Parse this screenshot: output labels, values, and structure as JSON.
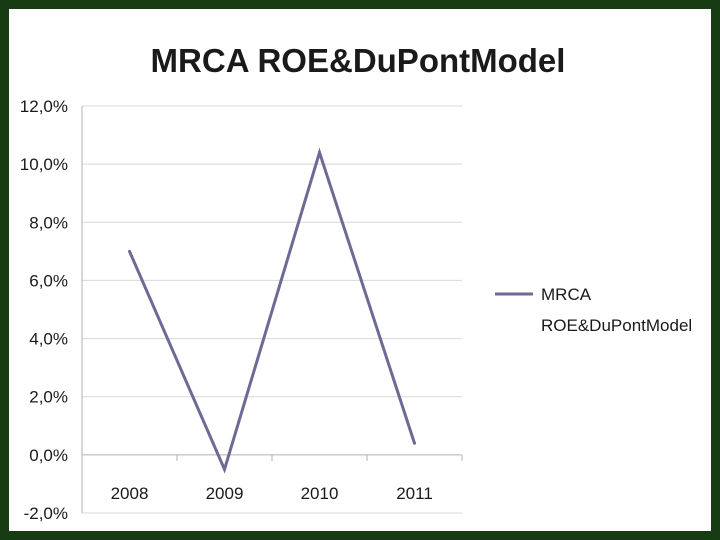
{
  "chart_data": {
    "type": "line",
    "title": "MRCA ROE&DuPontModel",
    "categories": [
      "2008",
      "2009",
      "2010",
      "2011"
    ],
    "series": [
      {
        "name": "MRCA ROE&DuPontModel",
        "values": [
          7.0,
          -0.5,
          10.4,
          0.4
        ]
      }
    ],
    "y_ticks": [
      "12,0%",
      "10,0%",
      "8,0%",
      "6,0%",
      "4,0%",
      "2,0%",
      "0,0%",
      "-2,0%"
    ],
    "ylim": [
      -2,
      12
    ],
    "grid": true,
    "legend_position": "right",
    "legend_lines": [
      "MRCA",
      "ROE&DuPontModel"
    ],
    "colors": {
      "line": "#6b6b95",
      "frame": "#173b12",
      "background": "#ffffff"
    }
  }
}
